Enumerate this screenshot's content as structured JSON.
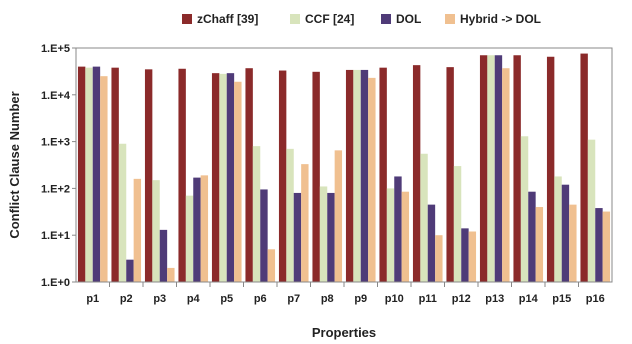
{
  "chart_data": {
    "type": "bar",
    "title": "",
    "xlabel": "Properties",
    "ylabel": "Conflict Clause Number",
    "yscale": "log",
    "ylim": [
      1,
      100000
    ],
    "yticks": [
      "1.E+0",
      "1.E+1",
      "1.E+2",
      "1.E+3",
      "1.E+4",
      "1.E+5"
    ],
    "ytick_values": [
      1,
      10,
      100,
      1000,
      10000,
      100000
    ],
    "grid": false,
    "legend_position": "top",
    "categories": [
      "p1",
      "p2",
      "p3",
      "p4",
      "p5",
      "p6",
      "p7",
      "p8",
      "p9",
      "p10",
      "p11",
      "p12",
      "p13",
      "p14",
      "p15",
      "p16"
    ],
    "series": [
      {
        "name": "zChaff [39]",
        "color": "#8b2a2a",
        "values": [
          40000,
          38000,
          35000,
          36000,
          29000,
          37000,
          33000,
          31000,
          34000,
          38000,
          43000,
          39000,
          70000,
          70000,
          65000,
          76000
        ]
      },
      {
        "name": "CCF [24]",
        "color": "#d8e4bc",
        "values": [
          38000,
          900,
          150,
          70,
          28000,
          800,
          700,
          110,
          34000,
          100,
          550,
          300,
          70000,
          1300,
          180,
          1100
        ]
      },
      {
        "name": "DOL",
        "color": "#4f3b78",
        "values": [
          40000,
          3,
          13,
          170,
          29000,
          95,
          80,
          80,
          34000,
          180,
          45,
          14,
          70000,
          85,
          120,
          38
        ]
      },
      {
        "name": "Hybrid -> DOL",
        "color": "#f0c090",
        "values": [
          25000,
          160,
          2,
          190,
          19000,
          5,
          330,
          650,
          23000,
          85,
          10,
          12,
          37000,
          40,
          45,
          32
        ]
      }
    ]
  }
}
